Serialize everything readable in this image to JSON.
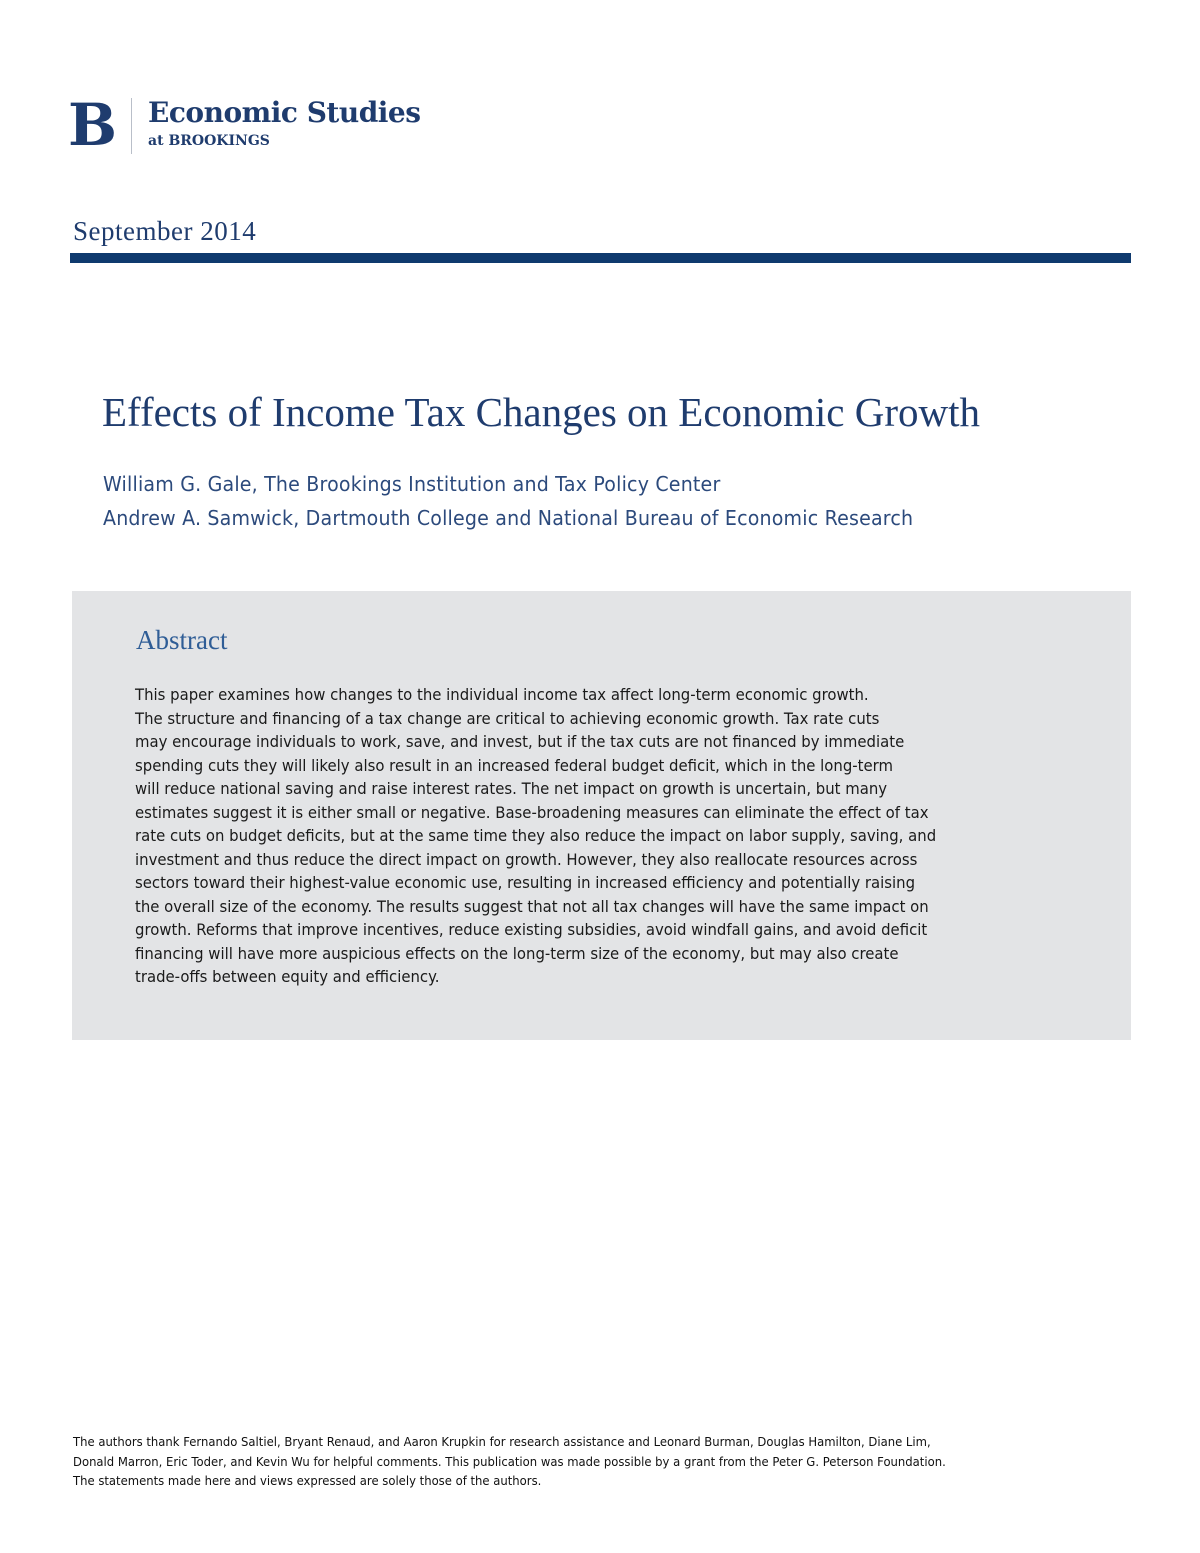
{
  "header": {
    "logo": {
      "mark": "B",
      "title": "Economic Studies",
      "subtitle": "at BROOKINGS"
    },
    "date": "September 2014"
  },
  "paper": {
    "title": "Effects of Income Tax Changes on Economic Growth",
    "authors": [
      "William G. Gale, The Brookings Institution and Tax Policy Center",
      "Andrew A. Samwick, Dartmouth College and National Bureau of Economic Research"
    ]
  },
  "abstract": {
    "heading": "Abstract",
    "lines": [
      "This paper examines how changes to the individual income tax affect long-term economic growth.",
      "The structure and financing of a tax change are critical to achieving economic growth. Tax rate cuts",
      "may encourage individuals to work, save, and invest, but if the tax cuts are not financed by immediate",
      "spending cuts they will likely also result in an increased federal budget deficit, which in the long-term",
      "will reduce national saving and raise interest rates.  The net impact on growth is uncertain, but many",
      "estimates suggest it is either small or negative.  Base-broadening measures can eliminate the effect of tax",
      "rate cuts on budget deficits, but at the same time they also reduce the impact on labor supply, saving, and",
      "investment and thus reduce the direct impact on growth.  However, they also reallocate resources across",
      "sectors toward their highest-value economic use, resulting in increased efficiency and potentially raising",
      "the overall size of the economy.  The results suggest that not all tax changes will have the same impact on",
      "growth.  Reforms that improve incentives, reduce existing subsidies, avoid windfall gains, and avoid deficit",
      "financing will have more auspicious effects on the long-term size of the economy, but may also create",
      "trade-offs between equity and efficiency."
    ]
  },
  "footnote": {
    "lines": [
      "The authors thank Fernando Saltiel, Bryant Renaud, and Aaron Krupkin for research assistance and Leonard Burman, Douglas Hamilton, Diane Lim,",
      "Donald Marron, Eric Toder, and Kevin Wu for helpful comments. This publication was made possible by a grant from the Peter G. Peterson Foundation.",
      "The statements made here and views expressed are solely those of the authors."
    ]
  },
  "colors": {
    "brand_navy": "#1f3c6e",
    "rule": "#0f3a6e",
    "abstract_bg": "#e3e4e6",
    "abstract_heading": "#2f5d96"
  }
}
